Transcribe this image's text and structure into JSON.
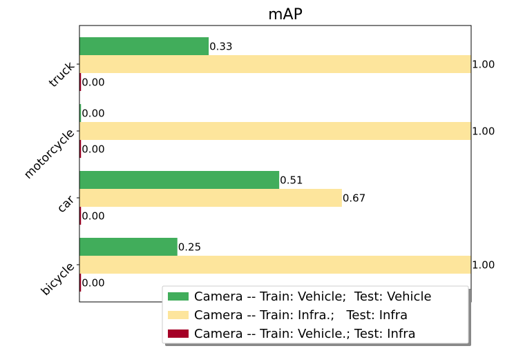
{
  "chart_data": {
    "type": "hbar",
    "title": "mAP",
    "categories": [
      "truck",
      "motorcycle",
      "car",
      "bicycle"
    ],
    "xlim": [
      0,
      1
    ],
    "legend": "lower right",
    "series": [
      {
        "name": "Camera -- Train: Vehicle;  Test: Vehicle",
        "color": "#41ad5b",
        "values": [
          0.33,
          0.004,
          0.51,
          0.25
        ],
        "value_labels": [
          "0.33",
          "0.00",
          "0.51",
          "0.25"
        ]
      },
      {
        "name": "Camera -- Train: Infra.;   Test: Infra",
        "color": "#fde59c",
        "values": [
          1,
          1,
          0.67,
          1
        ],
        "value_labels": [
          "1.00",
          "1.00",
          "0.67",
          "1.00"
        ]
      },
      {
        "name": "Camera -- Train: Vehicle.; Test: Infra",
        "color": "#a50026",
        "values": [
          0.004,
          0.004,
          0.004,
          0.004
        ],
        "value_labels": [
          "0.00",
          "0.00",
          "0.00",
          "0.00"
        ]
      }
    ]
  }
}
